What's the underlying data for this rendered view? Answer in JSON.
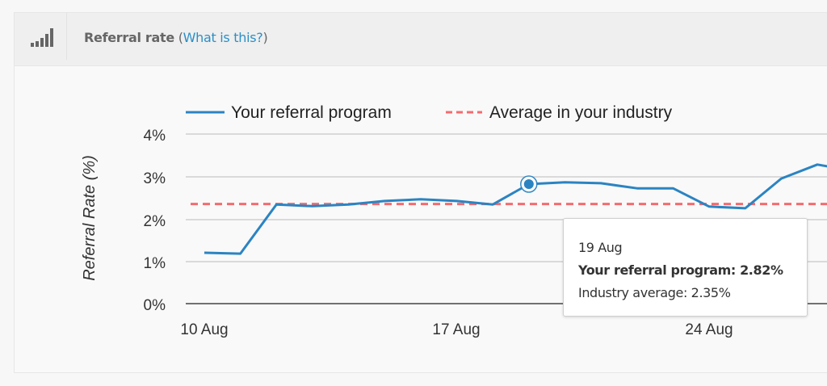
{
  "header": {
    "icon": "signal-bars-icon",
    "title": "Referral rate",
    "link_open": "(",
    "link": "What is this?",
    "link_close": ")"
  },
  "colors": {
    "series": "#2b84c2",
    "average": "#f46b6f",
    "link": "#2b8fc6"
  },
  "tooltip": {
    "date": "19 Aug",
    "series_line": "Your referral program: 2.82%",
    "average_line": "Industry average: 2.35%"
  },
  "chart_data": {
    "type": "line",
    "title": "Referral rate",
    "xlabel": "",
    "ylabel": "Referral Rate (%)",
    "ylim": [
      0,
      4
    ],
    "yticks": [
      "0%",
      "1%",
      "2%",
      "3%",
      "4%"
    ],
    "xticks": [
      "10 Aug",
      "17 Aug",
      "24 Aug"
    ],
    "grid": true,
    "legend_position": "top",
    "x": [
      "10 Aug",
      "11 Aug",
      "12 Aug",
      "13 Aug",
      "14 Aug",
      "15 Aug",
      "16 Aug",
      "17 Aug",
      "18 Aug",
      "19 Aug",
      "20 Aug",
      "21 Aug",
      "22 Aug",
      "23 Aug",
      "24 Aug",
      "25 Aug",
      "26 Aug",
      "27 Aug"
    ],
    "series": [
      {
        "name": "Your referral program",
        "style": "solid",
        "values": [
          1.2,
          1.18,
          2.34,
          2.3,
          2.34,
          2.42,
          2.46,
          2.42,
          2.34,
          2.82,
          2.86,
          2.84,
          2.72,
          2.72,
          2.29,
          2.25,
          2.95,
          3.28
        ]
      },
      {
        "name": "Average in your industry",
        "style": "dashed",
        "values": [
          2.35,
          2.35,
          2.35,
          2.35,
          2.35,
          2.35,
          2.35,
          2.35,
          2.35,
          2.35,
          2.35,
          2.35,
          2.35,
          2.35,
          2.35,
          2.35,
          2.35,
          2.35
        ]
      }
    ],
    "highlighted_point": {
      "x": "19 Aug",
      "value": 2.82
    }
  }
}
